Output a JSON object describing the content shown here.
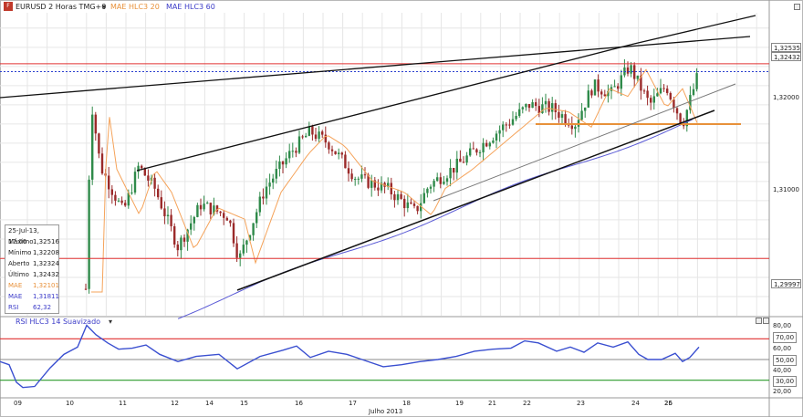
{
  "header": {
    "symbol": "EURUSD 2 Horas TMG+0",
    "ind1": "MAE HLC3  20",
    "ind2": "MAE HLC3  60",
    "icon": "app-icon"
  },
  "price_axis": {
    "ticks": [
      "1,32000",
      "1,31000",
      "1,30000"
    ],
    "boxes": [
      "1,32535",
      "1,32432",
      "1,29997"
    ]
  },
  "info": {
    "date": "25-Jul-13, 17:00",
    "rows": [
      {
        "label": "Máximo",
        "value": "1,32516"
      },
      {
        "label": "Mínimo",
        "value": "1,32208"
      },
      {
        "label": "Aberto",
        "value": "1,32324"
      },
      {
        "label": "Último",
        "value": "1,32432"
      },
      {
        "label": "MAE",
        "value": "1,32101"
      },
      {
        "label": "MAE",
        "value": "1,31811"
      },
      {
        "label": "RSI",
        "value": "62,32"
      }
    ]
  },
  "rsi": {
    "title": "RSI HLC3  14 Suavizado",
    "ticks": [
      "80,00",
      "70,00",
      "60,00",
      "50,00",
      "40,00",
      "30,00",
      "20,00"
    ]
  },
  "x_axis": {
    "days": [
      "09",
      "10",
      "11",
      "12",
      "14",
      "15",
      "16",
      "17",
      "18",
      "19",
      "21",
      "22",
      "23",
      "24",
      "25",
      "26"
    ],
    "month": "Julho 2013"
  },
  "colors": {
    "up": "#2f8a4a",
    "down": "#9b2a2a",
    "ema20": "#f5a35a",
    "ema60": "#5b5bd6",
    "rsi_line": "#3a4fd0",
    "red": "#e03030",
    "green": "#2a9a2a",
    "blue": "#2b3fcf"
  },
  "chart_data": {
    "type": "candlestick",
    "instrument": "EURUSD",
    "timeframe": "2 Horas",
    "series": [
      {
        "name": "MAE HLC3  20",
        "last": 1.32101
      },
      {
        "name": "MAE HLC3  60",
        "last": 1.31811
      }
    ],
    "levels": [
      1.32535,
      1.32432,
      1.29997
    ],
    "ylim": [
      1.2925,
      1.332
    ],
    "rsi_last": 62.32,
    "rsi_ylim": [
      13,
      87
    ]
  }
}
